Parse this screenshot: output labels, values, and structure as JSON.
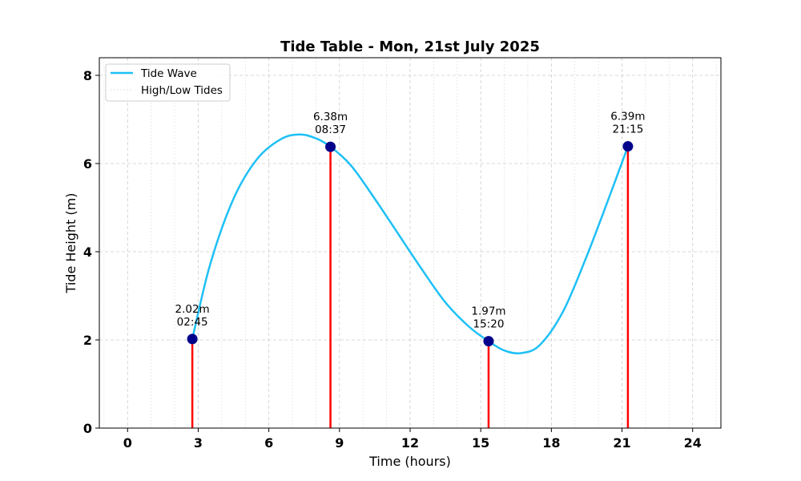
{
  "chart_data": {
    "type": "line",
    "title": "Tide Table - Mon, 21st July 2025",
    "xlabel": "Time (hours)",
    "ylabel": "Tide Height (m)",
    "xlim": [
      -1.2,
      25.2
    ],
    "ylim": [
      0,
      8.4
    ],
    "xticks": [
      0,
      3,
      6,
      9,
      12,
      15,
      18,
      21,
      24
    ],
    "yticks": [
      0,
      2,
      4,
      6,
      8
    ],
    "minor_x_step": 1,
    "grid": true,
    "legend_position": "top-left",
    "series": [
      {
        "name": "Tide Wave",
        "color": "#1ec0f6",
        "x": [
          2.75,
          3.5,
          4.5,
          5.5,
          6.5,
          7.3,
          8.0,
          8.617,
          9.5,
          10.5,
          11.5,
          12.5,
          13.5,
          14.5,
          15.333,
          16.0,
          16.7,
          17.5,
          18.5,
          19.5,
          20.5,
          21.25
        ],
        "y": [
          2.02,
          3.7,
          5.2,
          6.1,
          6.55,
          6.66,
          6.57,
          6.38,
          5.95,
          5.2,
          4.4,
          3.6,
          2.85,
          2.3,
          1.97,
          1.76,
          1.7,
          1.88,
          2.65,
          3.9,
          5.3,
          6.39
        ]
      },
      {
        "name": "High/Low Tides",
        "color": "#d62728",
        "marker_color": "#00008b",
        "points": [
          {
            "x": 2.75,
            "y": 2.02,
            "label_value": "2.02m",
            "label_time": "02:45"
          },
          {
            "x": 8.617,
            "y": 6.38,
            "label_value": "6.38m",
            "label_time": "08:37"
          },
          {
            "x": 15.333,
            "y": 1.97,
            "label_value": "1.97m",
            "label_time": "15:20"
          },
          {
            "x": 21.25,
            "y": 6.39,
            "label_value": "6.39m",
            "label_time": "21:15"
          }
        ]
      }
    ],
    "colors": {
      "wave": "#1ec0f6",
      "stem": "#ff0000",
      "marker": "#00008b",
      "grid": "#cccccc",
      "minor_grid": "#dddddd"
    }
  }
}
